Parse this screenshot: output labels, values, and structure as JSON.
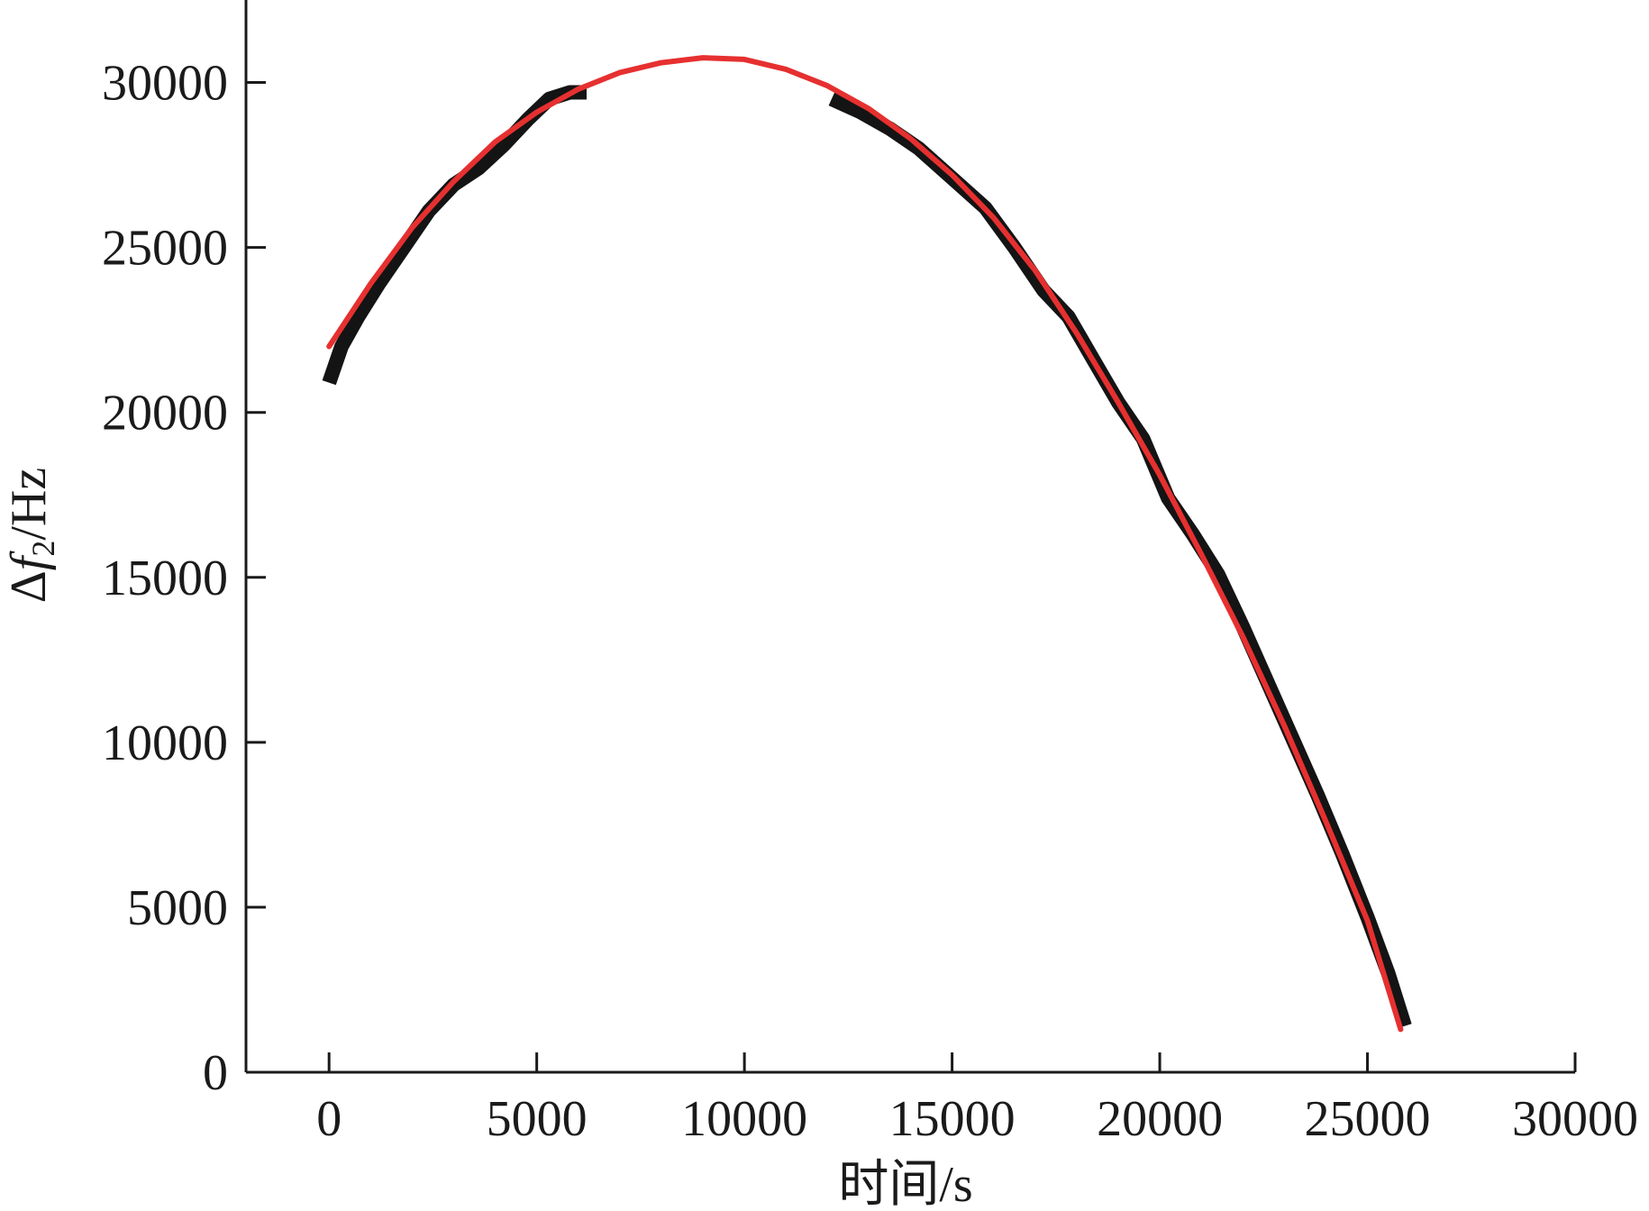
{
  "colors": {
    "axis": "#1a1a1a",
    "measured": "#141414",
    "fit": "#e63030"
  },
  "chart_data": {
    "type": "line",
    "title": "",
    "xlabel": "时间/s",
    "ylabel": "Δf₂/Hz",
    "ylabel_parts": {
      "delta": "Δ",
      "symbol": "f",
      "subscript": "2",
      "unit": "/Hz"
    },
    "xlim": [
      -2000,
      30000
    ],
    "ylim": [
      0,
      32500
    ],
    "xticks": [
      0,
      5000,
      10000,
      15000,
      20000,
      25000,
      30000
    ],
    "yticks": [
      0,
      5000,
      10000,
      15000,
      20000,
      25000,
      30000
    ],
    "grid": false,
    "legend": "none",
    "series": [
      {
        "role": "measured",
        "color": "#141414",
        "segments": [
          [
            [
              0,
              20900
            ],
            [
              300,
              22000
            ],
            [
              700,
              22900
            ],
            [
              1200,
              23900
            ],
            [
              1800,
              25000
            ],
            [
              2400,
              26100
            ],
            [
              3000,
              26900
            ],
            [
              3600,
              27400
            ],
            [
              4200,
              28100
            ],
            [
              4800,
              28900
            ],
            [
              5300,
              29500
            ],
            [
              5800,
              29700
            ],
            [
              6200,
              29700
            ]
          ],
          [
            [
              12100,
              29500
            ],
            [
              12800,
              29100
            ],
            [
              13500,
              28600
            ],
            [
              14200,
              28000
            ],
            [
              15000,
              27100
            ],
            [
              15800,
              26200
            ],
            [
              16500,
              25000
            ],
            [
              17200,
              23700
            ],
            [
              17800,
              22900
            ],
            [
              18400,
              21600
            ],
            [
              19000,
              20300
            ],
            [
              19600,
              19200
            ],
            [
              20200,
              17400
            ],
            [
              20800,
              16300
            ],
            [
              21400,
              15100
            ],
            [
              22000,
              13500
            ],
            [
              22600,
              11800
            ],
            [
              23200,
              10100
            ],
            [
              23800,
              8400
            ],
            [
              24400,
              6600
            ],
            [
              25000,
              4700
            ],
            [
              25500,
              3000
            ],
            [
              25900,
              1400
            ]
          ]
        ]
      },
      {
        "role": "fit",
        "color": "#e63030",
        "points": [
          [
            0,
            22000
          ],
          [
            1000,
            23900
          ],
          [
            2000,
            25600
          ],
          [
            3000,
            27000
          ],
          [
            4000,
            28200
          ],
          [
            5000,
            29100
          ],
          [
            6000,
            29800
          ],
          [
            7000,
            30300
          ],
          [
            8000,
            30600
          ],
          [
            9000,
            30750
          ],
          [
            10000,
            30700
          ],
          [
            11000,
            30400
          ],
          [
            12000,
            29900
          ],
          [
            13000,
            29200
          ],
          [
            14000,
            28300
          ],
          [
            15000,
            27200
          ],
          [
            16000,
            25900
          ],
          [
            17000,
            24300
          ],
          [
            18000,
            22400
          ],
          [
            19000,
            20300
          ],
          [
            20000,
            18100
          ],
          [
            21000,
            15700
          ],
          [
            22000,
            13200
          ],
          [
            23000,
            10500
          ],
          [
            24000,
            7600
          ],
          [
            25000,
            4600
          ],
          [
            25800,
            1300
          ]
        ]
      }
    ]
  }
}
